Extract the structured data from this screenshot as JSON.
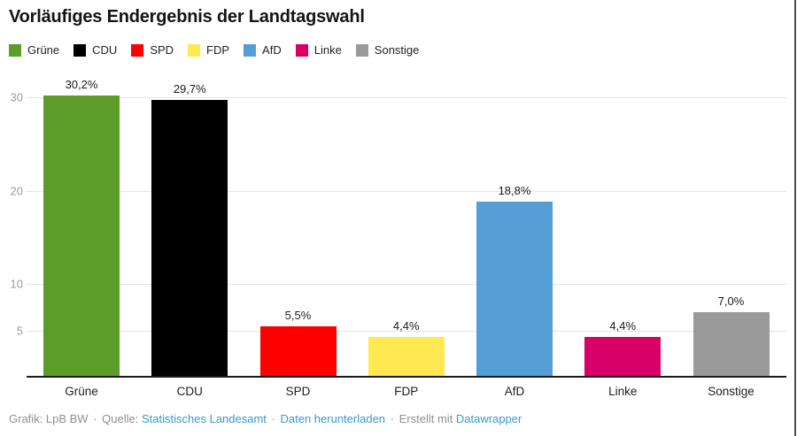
{
  "header": {
    "title": "Vorläufiges Endergebnis der Landtagswahl"
  },
  "legend": [
    {
      "label": "Grüne",
      "color": "#5d9c28"
    },
    {
      "label": "CDU",
      "color": "#000000"
    },
    {
      "label": "SPD",
      "color": "#fe0000"
    },
    {
      "label": "FDP",
      "color": "#ffe850"
    },
    {
      "label": "AfD",
      "color": "#549dd5"
    },
    {
      "label": "Linke",
      "color": "#d80066"
    },
    {
      "label": "Sonstige",
      "color": "#9a9a9a"
    }
  ],
  "chart_data": {
    "type": "bar",
    "title": "Vorläufiges Endergebnis der Landtagswahl",
    "categories": [
      "Grüne",
      "CDU",
      "SPD",
      "FDP",
      "AfD",
      "Linke",
      "Sonstige"
    ],
    "values": [
      30.2,
      29.7,
      5.5,
      4.4,
      18.8,
      4.4,
      7.0
    ],
    "value_labels": [
      "30,2%",
      "29,7%",
      "5,5%",
      "4,4%",
      "18,8%",
      "4,4%",
      "7,0%"
    ],
    "bar_colors": [
      "#5d9c28",
      "#000000",
      "#fe0000",
      "#ffe850",
      "#549dd5",
      "#d80066",
      "#9a9a9a"
    ],
    "xlabel": "",
    "ylabel": "",
    "y_ticks": [
      30,
      20,
      10,
      5
    ],
    "ylim": [
      0,
      31.5
    ],
    "grid": true,
    "legend_position": "top",
    "unit": "%"
  },
  "footer": {
    "credit": "Grafik: LpB BW",
    "separator": "·",
    "source_label": "Quelle:",
    "source_link": "Statistisches Landesamt",
    "download_link": "Daten herunterladen",
    "created_label": "Erstellt mit",
    "created_link": "Datawrapper"
  }
}
